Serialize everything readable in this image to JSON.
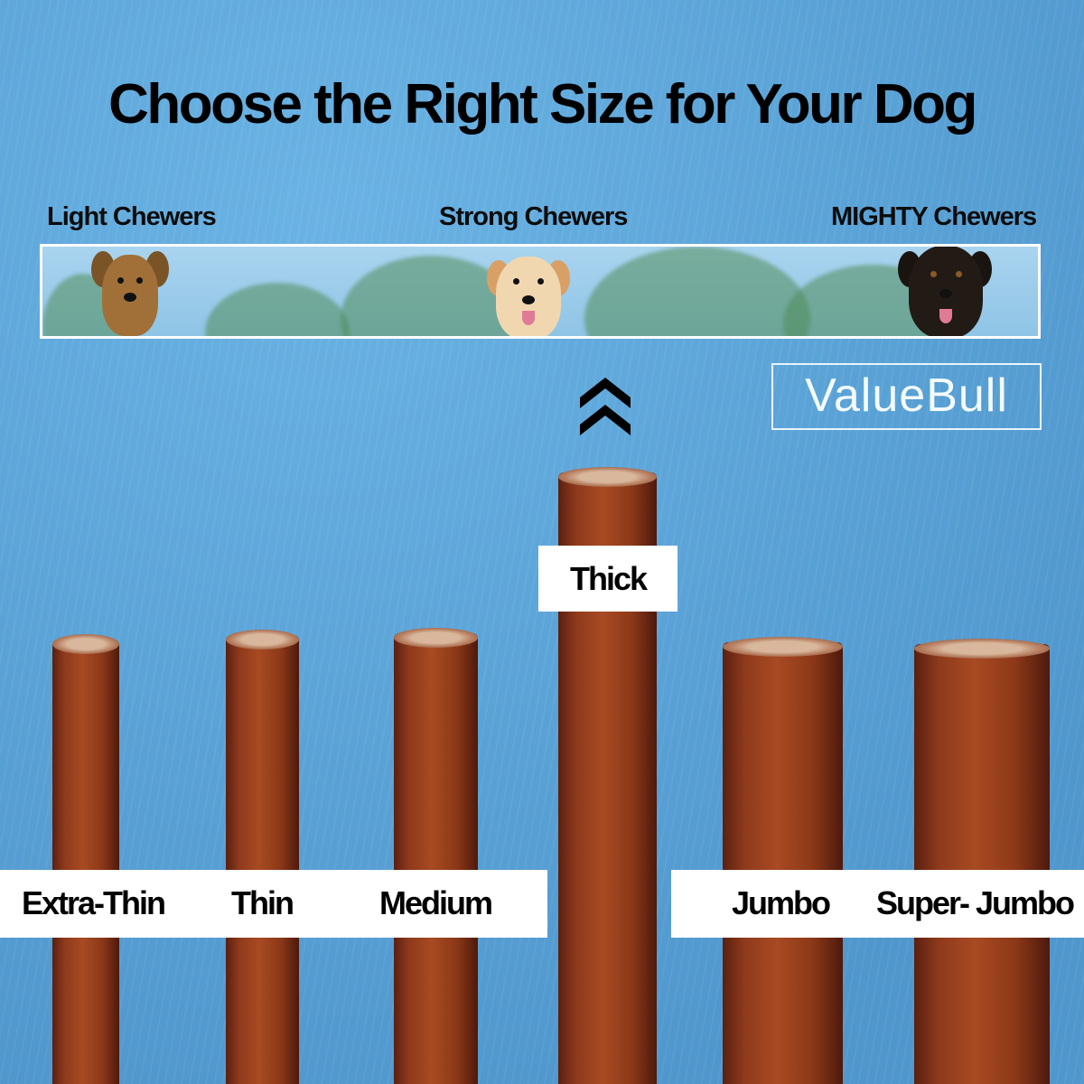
{
  "title": "Choose the Right Size for Your Dog",
  "chewers": {
    "light": "Light Chewers",
    "strong": "Strong Chewers",
    "mighty": "MIGHTY Chewers"
  },
  "brand": {
    "logo": "ValueBull"
  },
  "icons": {
    "up": "double-chevron-up-icon"
  },
  "sizes": [
    {
      "label": "Extra-Thin"
    },
    {
      "label": "Thin"
    },
    {
      "label": "Medium"
    },
    {
      "label": "Thick",
      "highlighted": true
    },
    {
      "label": "Jumbo"
    },
    {
      "label": "Super- Jumbo"
    }
  ]
}
